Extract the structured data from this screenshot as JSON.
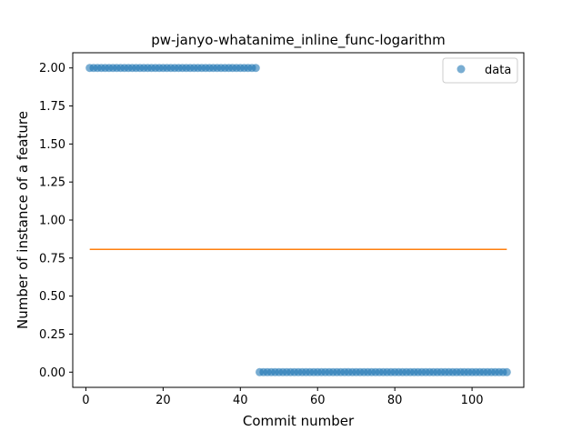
{
  "chart_data": {
    "type": "scatter",
    "title": "pw-janyo-whatanime_inline_func-logarithm",
    "xlabel": "Commit number",
    "ylabel": "Number of instance of a feature",
    "xlim": [
      -3.4,
      113.4
    ],
    "ylim": [
      -0.1,
      2.1
    ],
    "xticks": [
      0,
      20,
      40,
      60,
      80,
      100
    ],
    "yticks": [
      0.0,
      0.25,
      0.5,
      0.75,
      1.0,
      1.25,
      1.5,
      1.75,
      2.0
    ],
    "ytick_labels": [
      "0.00",
      "0.25",
      "0.50",
      "0.75",
      "1.00",
      "1.25",
      "1.50",
      "1.75",
      "2.00"
    ],
    "grid": false,
    "legend_position": "top-right",
    "series": [
      {
        "name": "data",
        "kind": "scatter",
        "color": "#1f77b4",
        "segments": [
          {
            "x_start": 1,
            "x_end": 44,
            "y": 2
          },
          {
            "x_start": 45,
            "x_end": 109,
            "y": 0
          }
        ]
      },
      {
        "kind": "line",
        "color": "#ff7f0e",
        "x": [
          1,
          109
        ],
        "y": [
          0.8073,
          0.8073
        ]
      }
    ]
  }
}
